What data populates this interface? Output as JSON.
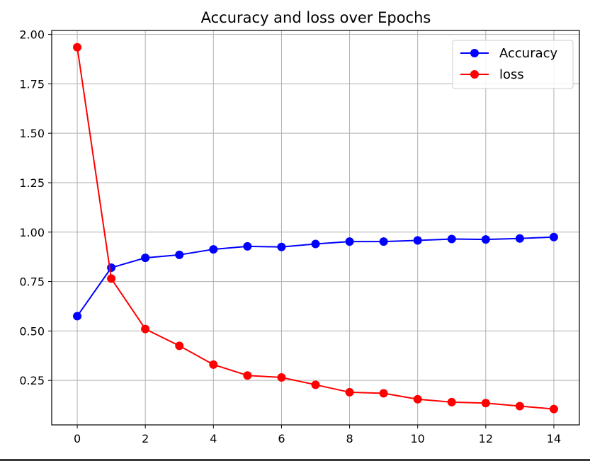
{
  "chart_data": {
    "type": "line",
    "title": "Accuracy and loss over Epochs",
    "xlabel": "",
    "ylabel": "",
    "x": [
      0,
      1,
      2,
      3,
      4,
      5,
      6,
      7,
      8,
      9,
      10,
      11,
      12,
      13,
      14
    ],
    "xlim": [
      -0.75,
      14.75
    ],
    "ylim": [
      0.025,
      2.02
    ],
    "x_ticks": [
      "0",
      "2",
      "4",
      "6",
      "8",
      "10",
      "12",
      "14"
    ],
    "y_ticks": [
      "0.25",
      "0.50",
      "0.75",
      "1.00",
      "1.25",
      "1.50",
      "1.75",
      "2.00"
    ],
    "grid": true,
    "legend_position": "top-right",
    "series": [
      {
        "name": "Accuracy",
        "color": "#0000ff",
        "marker": "circle",
        "values": [
          0.575,
          0.82,
          0.87,
          0.885,
          0.913,
          0.928,
          0.925,
          0.94,
          0.952,
          0.952,
          0.958,
          0.965,
          0.963,
          0.968,
          0.975
        ]
      },
      {
        "name": "loss",
        "color": "#ff0000",
        "marker": "circle",
        "values": [
          1.935,
          0.765,
          0.51,
          0.425,
          0.33,
          0.275,
          0.265,
          0.228,
          0.19,
          0.185,
          0.155,
          0.14,
          0.135,
          0.12,
          0.105
        ]
      }
    ]
  }
}
